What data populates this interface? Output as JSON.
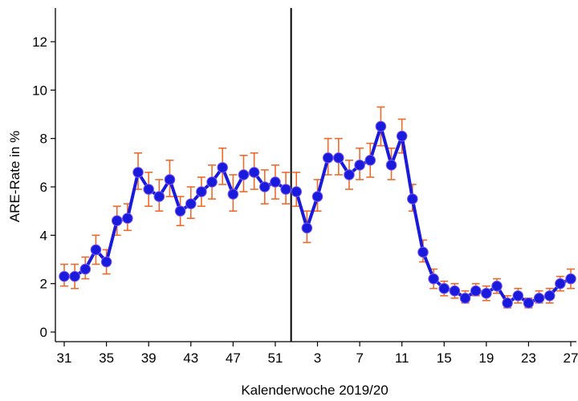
{
  "chart_data": {
    "type": "line",
    "title": "",
    "xlabel": "Kalenderwoche 2019/20",
    "ylabel": "ARE-Rate in %",
    "ylim": [
      0,
      13.5
    ],
    "y_ticks": [
      0,
      2,
      4,
      6,
      8,
      10,
      12
    ],
    "x_tick_labels": [
      "31",
      "35",
      "39",
      "43",
      "47",
      "51",
      "3",
      "7",
      "11",
      "15",
      "19",
      "23",
      "27"
    ],
    "x_tick_index": [
      0,
      4,
      8,
      12,
      16,
      20,
      24,
      28,
      32,
      36,
      40,
      44,
      48
    ],
    "year_break_index": 21.5,
    "grid": false,
    "colors": {
      "line": "#1a1adc",
      "marker": "#1a1adc",
      "error_bar": "#ee6a2c",
      "marker_stroke": "#7a5cf0"
    },
    "series": [
      {
        "name": "",
        "weeks": [
          "31",
          "32",
          "33",
          "34",
          "35",
          "36",
          "37",
          "38",
          "39",
          "40",
          "41",
          "42",
          "43",
          "44",
          "45",
          "46",
          "47",
          "48",
          "49",
          "50",
          "51",
          "52",
          "1",
          "2",
          "3",
          "4",
          "5",
          "6",
          "7",
          "8",
          "9",
          "10",
          "11",
          "12",
          "13",
          "14",
          "15",
          "16",
          "17",
          "18",
          "19",
          "20",
          "21",
          "22",
          "23",
          "24",
          "25",
          "26",
          "27"
        ],
        "values": [
          2.3,
          2.3,
          2.6,
          3.4,
          2.9,
          4.6,
          4.7,
          6.6,
          5.9,
          5.6,
          6.3,
          5.0,
          5.3,
          5.8,
          6.2,
          6.8,
          5.7,
          6.5,
          6.6,
          6.0,
          6.2,
          5.9,
          5.8,
          4.3,
          5.6,
          7.2,
          7.2,
          6.5,
          6.9,
          7.1,
          8.5,
          6.9,
          8.1,
          5.5,
          3.3,
          2.2,
          1.8,
          1.7,
          1.4,
          1.7,
          1.6,
          1.9,
          1.2,
          1.5,
          1.2,
          1.4,
          1.5,
          2.0,
          2.2
        ],
        "lower": [
          1.9,
          1.8,
          2.2,
          2.8,
          2.4,
          4.0,
          4.2,
          5.9,
          5.2,
          5.0,
          5.6,
          4.4,
          4.7,
          5.2,
          5.5,
          6.1,
          5.0,
          5.8,
          5.9,
          5.3,
          5.5,
          5.3,
          5.2,
          3.7,
          5.0,
          6.5,
          6.5,
          5.9,
          6.3,
          6.4,
          7.7,
          6.3,
          7.4,
          5.0,
          2.9,
          1.8,
          1.5,
          1.4,
          1.2,
          1.5,
          1.3,
          1.6,
          1.0,
          1.2,
          1.0,
          1.2,
          1.2,
          1.7,
          1.8
        ],
        "upper": [
          2.8,
          2.8,
          3.1,
          4.0,
          3.4,
          5.2,
          5.3,
          7.4,
          6.6,
          6.3,
          7.1,
          5.6,
          6.0,
          6.4,
          6.9,
          7.6,
          6.5,
          7.3,
          7.4,
          6.7,
          6.9,
          6.6,
          6.6,
          5.0,
          6.3,
          8.0,
          8.0,
          7.1,
          7.6,
          7.8,
          9.3,
          7.6,
          8.8,
          6.1,
          3.8,
          2.6,
          2.1,
          2.0,
          1.7,
          2.0,
          1.9,
          2.2,
          1.5,
          1.8,
          1.4,
          1.7,
          1.8,
          2.3,
          2.6
        ]
      }
    ]
  }
}
